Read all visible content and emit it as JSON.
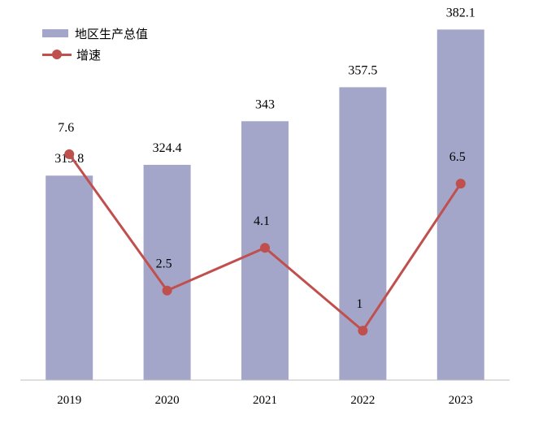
{
  "chart_data": {
    "type": "bar",
    "categories": [
      "2019",
      "2020",
      "2021",
      "2022",
      "2023"
    ],
    "series": [
      {
        "name": "地区生产总值",
        "type": "bar",
        "values": [
          319.8,
          324.4,
          343,
          357.5,
          382.1
        ],
        "color": "#a3a6c8"
      },
      {
        "name": "增速",
        "type": "line",
        "values": [
          7.6,
          2.5,
          4.1,
          1,
          6.5
        ],
        "color": "#c0504d"
      }
    ],
    "title": "",
    "xlabel": "",
    "ylabel": "",
    "legend_position": "top-left",
    "grid": false
  }
}
